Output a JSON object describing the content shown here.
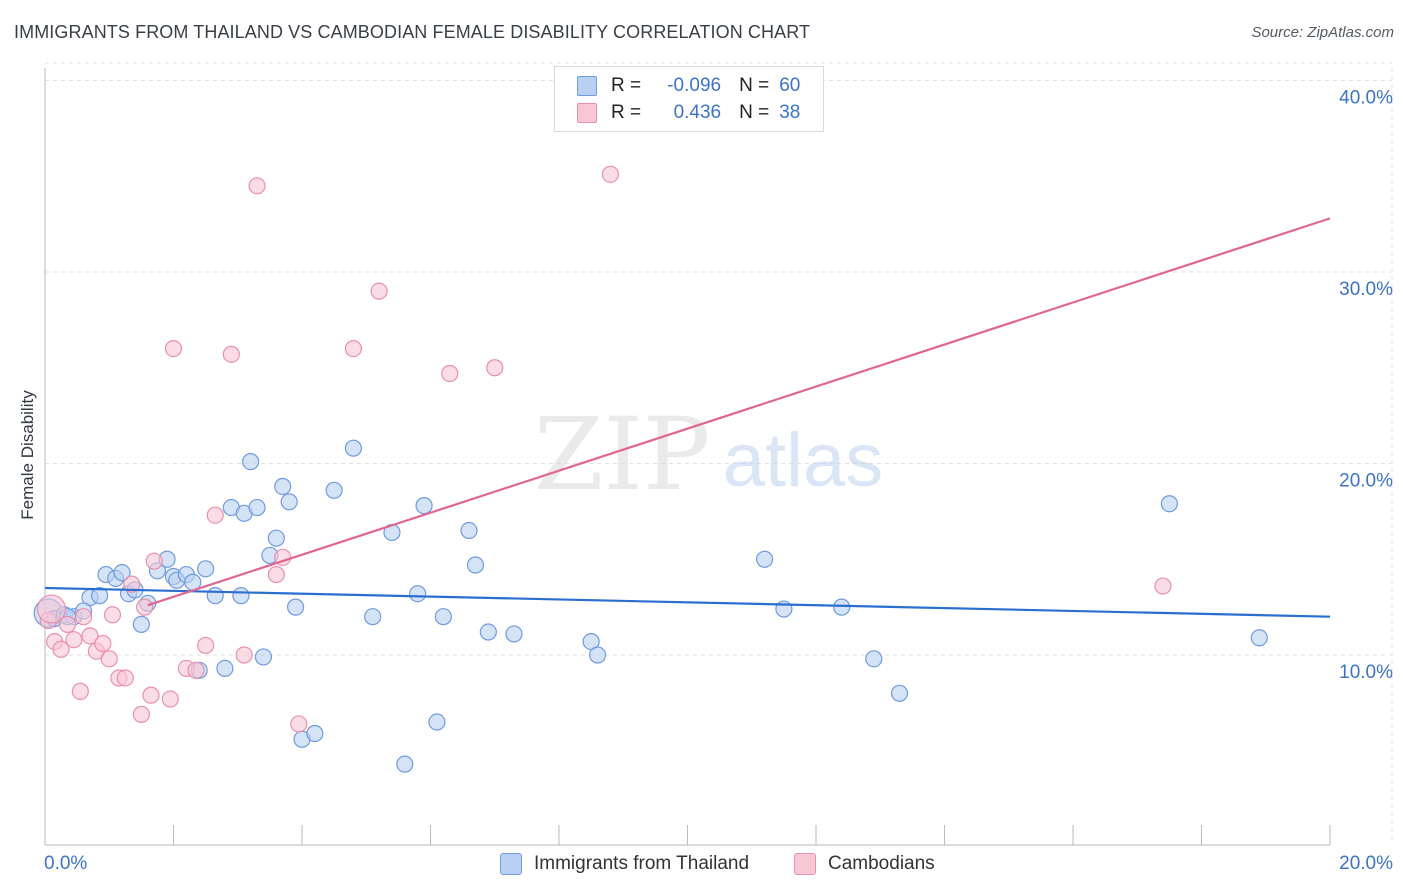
{
  "header": {
    "title": "IMMIGRANTS FROM THAILAND VS CAMBODIAN FEMALE DISABILITY CORRELATION CHART",
    "source": "Source: ZipAtlas.com"
  },
  "watermark": {
    "zip": "ZIP",
    "atlas": "atlas"
  },
  "legend": {
    "rows": [
      {
        "r_label": "R =",
        "r_value": "-0.096",
        "n_label": "N =",
        "n_value": "60",
        "fill": "#b9d0f2",
        "stroke": "#6f9be0"
      },
      {
        "r_label": "R =",
        "r_value": "0.436",
        "n_label": "N =",
        "n_value": "38",
        "fill": "#f8c7d6",
        "stroke": "#ea8fae"
      }
    ]
  },
  "bottom_legend": {
    "items": [
      {
        "label": "Immigrants from Thailand",
        "fill": "#b9d0f2",
        "stroke": "#6f9be0"
      },
      {
        "label": "Cambodians",
        "fill": "#f8c7d6",
        "stroke": "#ea8fae"
      }
    ]
  },
  "chart_data": {
    "type": "scatter",
    "title": "IMMIGRANTS FROM THAILAND VS CAMBODIAN FEMALE DISABILITY CORRELATION CHART",
    "xlabel": "",
    "ylabel": "Female Disability",
    "xlim": [
      0,
      20
    ],
    "ylim": [
      0,
      42
    ],
    "x_tick_labels": [
      {
        "value": 0,
        "label": "0.0%"
      },
      {
        "value": 20,
        "label": "20.0%"
      }
    ],
    "y_tick_labels": [
      {
        "value": 10,
        "label": "10.0%"
      },
      {
        "value": 20,
        "label": "20.0%"
      },
      {
        "value": 30,
        "label": "30.0%"
      },
      {
        "value": 40,
        "label": "40.0%"
      }
    ],
    "grid": true,
    "legend_position": "top-center",
    "series": [
      {
        "name": "Immigrants from Thailand",
        "color": "#6f9be0",
        "fill": "#b9d0f2",
        "line_color": "#2a6fcf",
        "trend": {
          "x": [
            0,
            20
          ],
          "y": [
            13.5,
            12.0
          ]
        },
        "points": [
          [
            0.05,
            12.2
          ],
          [
            0.15,
            11.9
          ],
          [
            0.3,
            12.1
          ],
          [
            0.45,
            12.0
          ],
          [
            0.7,
            13.0
          ],
          [
            0.85,
            13.1
          ],
          [
            0.95,
            14.2
          ],
          [
            1.1,
            14.0
          ],
          [
            1.2,
            14.3
          ],
          [
            1.3,
            13.2
          ],
          [
            1.4,
            13.4
          ],
          [
            1.5,
            11.6
          ],
          [
            1.6,
            12.7
          ],
          [
            1.75,
            14.4
          ],
          [
            1.9,
            15.0
          ],
          [
            2.0,
            14.1
          ],
          [
            2.05,
            13.9
          ],
          [
            2.2,
            14.2
          ],
          [
            2.3,
            13.8
          ],
          [
            2.4,
            9.2
          ],
          [
            2.5,
            14.5
          ],
          [
            2.65,
            13.1
          ],
          [
            2.8,
            9.3
          ],
          [
            2.9,
            17.7
          ],
          [
            3.1,
            17.4
          ],
          [
            3.2,
            20.1
          ],
          [
            3.3,
            17.7
          ],
          [
            3.4,
            9.9
          ],
          [
            3.5,
            15.2
          ],
          [
            3.6,
            16.1
          ],
          [
            3.7,
            18.8
          ],
          [
            3.8,
            18.0
          ],
          [
            3.9,
            12.5
          ],
          [
            4.0,
            5.6
          ],
          [
            4.2,
            5.9
          ],
          [
            4.5,
            18.6
          ],
          [
            4.8,
            20.8
          ],
          [
            5.1,
            12.0
          ],
          [
            5.4,
            16.4
          ],
          [
            5.6,
            4.3
          ],
          [
            5.8,
            13.2
          ],
          [
            5.9,
            17.8
          ],
          [
            6.1,
            6.5
          ],
          [
            6.2,
            12.0
          ],
          [
            6.6,
            16.5
          ],
          [
            6.7,
            14.7
          ],
          [
            6.9,
            11.2
          ],
          [
            7.3,
            11.1
          ],
          [
            8.5,
            10.7
          ],
          [
            8.6,
            10.0
          ],
          [
            11.2,
            15.0
          ],
          [
            11.5,
            12.4
          ],
          [
            12.4,
            12.5
          ],
          [
            12.9,
            9.8
          ],
          [
            13.3,
            8.0
          ],
          [
            17.5,
            17.9
          ],
          [
            18.9,
            10.9
          ],
          [
            0.6,
            12.3
          ],
          [
            0.35,
            12.0
          ],
          [
            3.05,
            13.1
          ]
        ]
      },
      {
        "name": "Cambodians",
        "color": "#ea8fae",
        "fill": "#f8c7d6",
        "line_color": "#e06691",
        "trend": {
          "x": [
            1.6,
            20
          ],
          "y": [
            12.6,
            32.8
          ]
        },
        "points": [
          [
            0.05,
            11.8
          ],
          [
            0.15,
            10.7
          ],
          [
            0.25,
            10.3
          ],
          [
            0.35,
            11.6
          ],
          [
            0.45,
            10.8
          ],
          [
            0.55,
            8.1
          ],
          [
            0.7,
            11.0
          ],
          [
            0.8,
            10.2
          ],
          [
            0.9,
            10.6
          ],
          [
            1.0,
            9.8
          ],
          [
            1.05,
            12.1
          ],
          [
            1.15,
            8.8
          ],
          [
            1.25,
            8.8
          ],
          [
            1.35,
            13.7
          ],
          [
            1.5,
            6.9
          ],
          [
            1.55,
            12.5
          ],
          [
            1.65,
            7.9
          ],
          [
            1.7,
            14.9
          ],
          [
            1.95,
            7.7
          ],
          [
            2.0,
            26.0
          ],
          [
            2.2,
            9.3
          ],
          [
            2.35,
            9.2
          ],
          [
            2.5,
            10.5
          ],
          [
            2.65,
            17.3
          ],
          [
            2.9,
            25.7
          ],
          [
            3.1,
            10.0
          ],
          [
            3.3,
            34.5
          ],
          [
            3.6,
            14.2
          ],
          [
            3.7,
            15.1
          ],
          [
            3.95,
            6.4
          ],
          [
            4.8,
            26.0
          ],
          [
            5.2,
            29.0
          ],
          [
            6.3,
            24.7
          ],
          [
            7.0,
            25.0
          ],
          [
            8.8,
            35.1
          ],
          [
            17.4,
            13.6
          ],
          [
            0.1,
            12.4
          ],
          [
            0.6,
            12.0
          ]
        ]
      }
    ]
  }
}
